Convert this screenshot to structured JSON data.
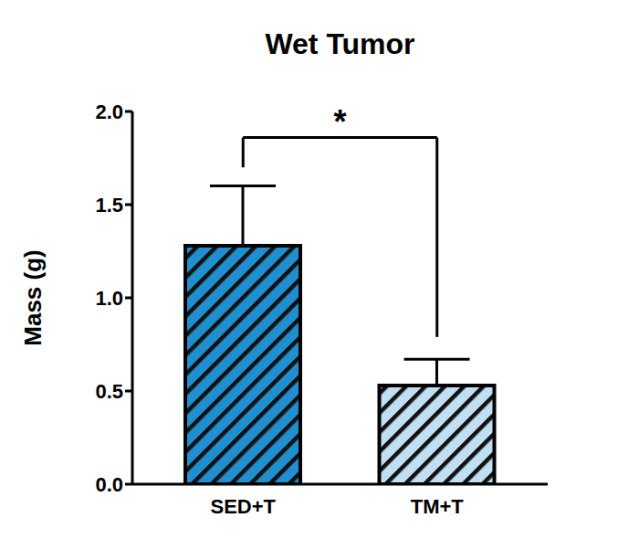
{
  "chart_data": {
    "type": "bar",
    "title": "Wet Tumor",
    "y_label": "Mass (g)",
    "categories": [
      "SED+T",
      "TM+T"
    ],
    "values": [
      1.28,
      0.53
    ],
    "errors": [
      0.32,
      0.14
    ],
    "colors": [
      "#1f8fcf",
      "#c0dff2"
    ],
    "ylim": [
      0,
      2
    ],
    "yticks": [
      {
        "value": 0,
        "label": "0.0"
      },
      0.5,
      {
        "value": 1,
        "label": "1.0"
      },
      1.5,
      {
        "value": 2,
        "label": "2.0"
      }
    ],
    "annotation": "*",
    "grid": false
  }
}
